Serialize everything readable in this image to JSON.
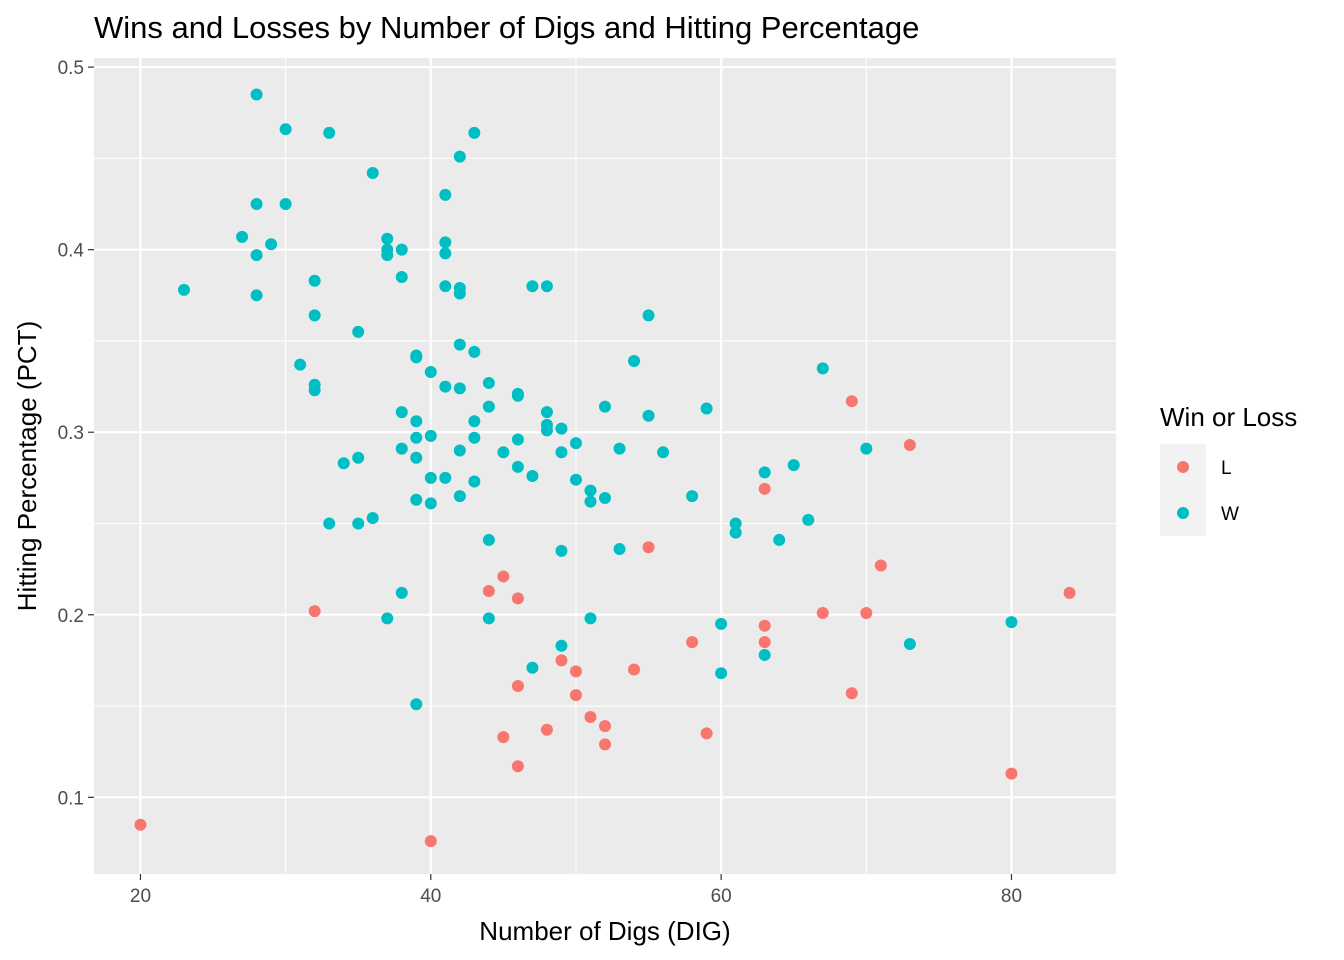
{
  "chart_data": {
    "type": "scatter",
    "title": "Wins and Losses by Number of Digs and Hitting Percentage",
    "xlabel": "Number of Digs (DIG)",
    "ylabel": "Hitting Percentage (PCT)",
    "xlim": [
      16.8,
      87.2
    ],
    "ylim": [
      0.058,
      0.505
    ],
    "xticks": [
      20,
      40,
      60,
      80
    ],
    "xtick_labels": [
      "20",
      "40",
      "60",
      "80"
    ],
    "yticks": [
      0.1,
      0.2,
      0.3,
      0.4,
      0.5
    ],
    "ytick_labels": [
      "0.1",
      "0.2",
      "0.3",
      "0.4",
      "0.5"
    ],
    "grid": true,
    "legend": {
      "title": "Win or Loss",
      "position": "right"
    },
    "series": [
      {
        "name": "L",
        "color": "#F8766D",
        "points": [
          [
            20,
            0.085
          ],
          [
            40,
            0.076
          ],
          [
            32,
            0.202
          ],
          [
            44,
            0.213
          ],
          [
            45,
            0.221
          ],
          [
            46,
            0.209
          ],
          [
            46,
            0.161
          ],
          [
            45,
            0.133
          ],
          [
            46,
            0.117
          ],
          [
            48,
            0.137
          ],
          [
            49,
            0.175
          ],
          [
            50,
            0.169
          ],
          [
            50,
            0.156
          ],
          [
            51,
            0.144
          ],
          [
            52,
            0.139
          ],
          [
            52,
            0.129
          ],
          [
            54,
            0.17
          ],
          [
            55,
            0.237
          ],
          [
            58,
            0.185
          ],
          [
            59,
            0.135
          ],
          [
            63,
            0.269
          ],
          [
            63,
            0.194
          ],
          [
            63,
            0.185
          ],
          [
            67,
            0.201
          ],
          [
            69,
            0.317
          ],
          [
            69,
            0.157
          ],
          [
            70,
            0.201
          ],
          [
            71,
            0.227
          ],
          [
            73,
            0.293
          ],
          [
            80,
            0.113
          ],
          [
            84,
            0.212
          ]
        ]
      },
      {
        "name": "W",
        "color": "#00BFC4",
        "points": [
          [
            23,
            0.378
          ],
          [
            27,
            0.407
          ],
          [
            28,
            0.485
          ],
          [
            28,
            0.425
          ],
          [
            28,
            0.397
          ],
          [
            28,
            0.375
          ],
          [
            29,
            0.403
          ],
          [
            30,
            0.466
          ],
          [
            30,
            0.425
          ],
          [
            31,
            0.337
          ],
          [
            32,
            0.383
          ],
          [
            32,
            0.364
          ],
          [
            32,
            0.326
          ],
          [
            32,
            0.323
          ],
          [
            33,
            0.464
          ],
          [
            33,
            0.25
          ],
          [
            34,
            0.283
          ],
          [
            35,
            0.355
          ],
          [
            35,
            0.286
          ],
          [
            35,
            0.25
          ],
          [
            36,
            0.442
          ],
          [
            36,
            0.253
          ],
          [
            37,
            0.406
          ],
          [
            37,
            0.4
          ],
          [
            37,
            0.397
          ],
          [
            37,
            0.198
          ],
          [
            38,
            0.4
          ],
          [
            38,
            0.385
          ],
          [
            38,
            0.311
          ],
          [
            38,
            0.291
          ],
          [
            38,
            0.212
          ],
          [
            39,
            0.342
          ],
          [
            39,
            0.341
          ],
          [
            39,
            0.306
          ],
          [
            39,
            0.297
          ],
          [
            39,
            0.286
          ],
          [
            39,
            0.263
          ],
          [
            39,
            0.151
          ],
          [
            40,
            0.333
          ],
          [
            40,
            0.298
          ],
          [
            40,
            0.275
          ],
          [
            40,
            0.261
          ],
          [
            41,
            0.43
          ],
          [
            41,
            0.404
          ],
          [
            41,
            0.398
          ],
          [
            41,
            0.38
          ],
          [
            41,
            0.325
          ],
          [
            41,
            0.275
          ],
          [
            42,
            0.451
          ],
          [
            42,
            0.379
          ],
          [
            42,
            0.376
          ],
          [
            42,
            0.348
          ],
          [
            42,
            0.324
          ],
          [
            42,
            0.29
          ],
          [
            42,
            0.265
          ],
          [
            43,
            0.464
          ],
          [
            43,
            0.344
          ],
          [
            43,
            0.306
          ],
          [
            43,
            0.297
          ],
          [
            43,
            0.273
          ],
          [
            44,
            0.327
          ],
          [
            44,
            0.314
          ],
          [
            44,
            0.241
          ],
          [
            44,
            0.198
          ],
          [
            45,
            0.289
          ],
          [
            46,
            0.321
          ],
          [
            46,
            0.32
          ],
          [
            46,
            0.296
          ],
          [
            46,
            0.281
          ],
          [
            47,
            0.38
          ],
          [
            47,
            0.276
          ],
          [
            47,
            0.171
          ],
          [
            48,
            0.38
          ],
          [
            48,
            0.311
          ],
          [
            48,
            0.304
          ],
          [
            48,
            0.301
          ],
          [
            49,
            0.302
          ],
          [
            49,
            0.289
          ],
          [
            49,
            0.235
          ],
          [
            49,
            0.183
          ],
          [
            50,
            0.294
          ],
          [
            50,
            0.274
          ],
          [
            51,
            0.268
          ],
          [
            51,
            0.262
          ],
          [
            51,
            0.198
          ],
          [
            52,
            0.314
          ],
          [
            52,
            0.264
          ],
          [
            53,
            0.291
          ],
          [
            53,
            0.236
          ],
          [
            54,
            0.339
          ],
          [
            55,
            0.364
          ],
          [
            55,
            0.309
          ],
          [
            56,
            0.289
          ],
          [
            58,
            0.265
          ],
          [
            59,
            0.313
          ],
          [
            60,
            0.195
          ],
          [
            60,
            0.168
          ],
          [
            61,
            0.25
          ],
          [
            61,
            0.245
          ],
          [
            63,
            0.278
          ],
          [
            63,
            0.178
          ],
          [
            64,
            0.241
          ],
          [
            65,
            0.282
          ],
          [
            66,
            0.252
          ],
          [
            67,
            0.335
          ],
          [
            70,
            0.291
          ],
          [
            73,
            0.184
          ],
          [
            80,
            0.196
          ]
        ]
      }
    ]
  }
}
